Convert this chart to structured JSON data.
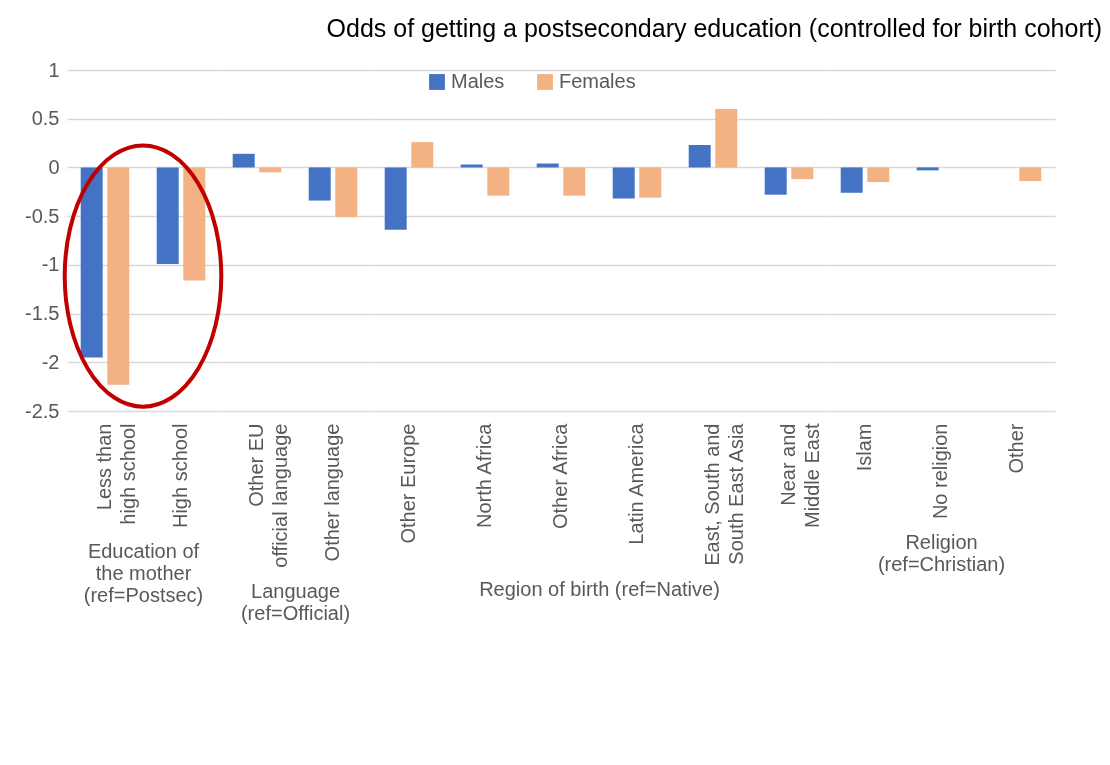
{
  "chart_data": [
    {
      "type": "bar",
      "xlabel": "Education of the mother (ref=Postsec)",
      "categories": [
        "Less than high school",
        "High school"
      ],
      "legend": "top",
      "grid": "y",
      "ylim": [
        -2.5,
        1
      ],
      "yticks": [
        1,
        0.5,
        0,
        -0.5,
        -1,
        -1.5,
        -2,
        -2.5
      ],
      "series": [
        {
          "name": "Males",
          "color": "#4472c4",
          "values": [
            -1.95,
            -0.99
          ]
        },
        {
          "name": "Females",
          "color": "#f4b183",
          "values": [
            -2.23,
            -1.16
          ]
        }
      ]
    },
    {
      "type": "bar",
      "xlabel": "Language (ref=Official)",
      "categories": [
        "Other EU official language",
        "Other language"
      ],
      "grid": "y",
      "tick_labels": "x",
      "ylim": [
        -2.5,
        1
      ],
      "yticks": [
        1,
        0.5,
        0,
        -0.5,
        -1,
        -1.5,
        -2,
        -2.5
      ],
      "series": [
        {
          "name": "Males",
          "color": "#4472c4",
          "values": [
            0.14,
            -0.34
          ]
        },
        {
          "name": "Females",
          "color": "#f4b183",
          "values": [
            -0.05,
            -0.51
          ]
        }
      ]
    },
    {
      "type": "bar",
      "title": "Odds of getting a postsecondary education (controlled for birth cohort)",
      "xlabel": "Region of birth (ref=Native)",
      "categories": [
        "Other Europe",
        "North Africa",
        "Other Africa",
        "Latin America",
        "East, South and South East Asia",
        "Near and Middle East"
      ],
      "grid": "y",
      "tick_labels": "x",
      "ylim": [
        -2.5,
        1
      ],
      "yticks": [
        1,
        0.5,
        0,
        -0.5,
        -1,
        -1.5,
        -2,
        -2.5
      ],
      "series": [
        {
          "name": "Males",
          "color": "#4472c4",
          "values": [
            -0.64,
            0.03,
            0.04,
            -0.32,
            0.23,
            -0.28
          ]
        },
        {
          "name": "Females",
          "color": "#f4b183",
          "values": [
            0.26,
            -0.29,
            -0.29,
            -0.31,
            0.6,
            -0.12
          ]
        }
      ]
    },
    {
      "type": "bar",
      "xlabel": "Religion (ref=Christian)",
      "categories": [
        "Islam",
        "No religion",
        "Other"
      ],
      "grid": "y",
      "tick_labels": "x",
      "ylim": [
        -2.5,
        1
      ],
      "yticks": [
        1,
        0.5,
        0,
        -0.5,
        -1,
        -1.5,
        -2,
        -2.5
      ],
      "series": [
        {
          "name": "Males",
          "color": "#4472c4",
          "values": [
            -0.26,
            -0.03,
            0
          ]
        },
        {
          "name": "Females",
          "color": "#f4b183",
          "values": [
            -0.15,
            0,
            -0.14
          ]
        }
      ]
    }
  ]
}
